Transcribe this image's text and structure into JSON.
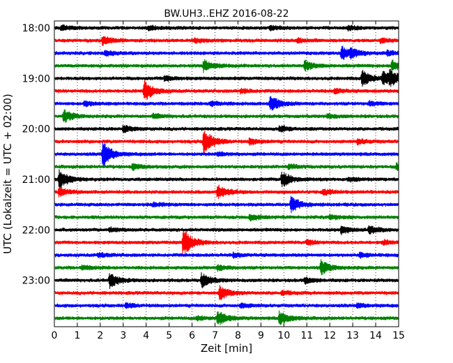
{
  "chart_data": {
    "type": "line",
    "title": "BW.UH3..EHZ 2016-08-22",
    "xlabel": "Zeit  [min]",
    "ylabel": "UTC (Lokalzeit = UTC + 02:00)",
    "xlim": [
      0,
      15
    ],
    "x_ticks": [
      "0",
      "1",
      "2",
      "3",
      "4",
      "5",
      "6",
      "7",
      "8",
      "9",
      "10",
      "11",
      "12",
      "13",
      "14",
      "15"
    ],
    "y_tick_labels": [
      "18:00",
      "19:00",
      "20:00",
      "21:00",
      "22:00",
      "23:00"
    ],
    "grid": "vertical dotted",
    "trace_interval_minutes": 15,
    "trace_colors": [
      "#000000",
      "#ff0000",
      "#0000ff",
      "#008000"
    ],
    "traces": [
      {
        "start": "18:00",
        "events": [
          [
            0.3,
            0.5
          ],
          [
            4.1,
            0.45
          ],
          [
            9.4,
            0.4
          ],
          [
            12.8,
            0.4
          ]
        ]
      },
      {
        "start": "18:15",
        "events": [
          [
            2.1,
            0.9
          ],
          [
            6.1,
            0.4
          ],
          [
            10.6,
            0.4
          ],
          [
            14.2,
            0.4
          ]
        ]
      },
      {
        "start": "18:30",
        "events": [
          [
            2.2,
            0.5
          ],
          [
            12.5,
            1.3
          ],
          [
            12.9,
            0.6
          ],
          [
            14.5,
            0.4
          ]
        ]
      },
      {
        "start": "18:45",
        "events": [
          [
            6.5,
            1.1
          ],
          [
            10.9,
            0.9
          ],
          [
            14.7,
            1.1
          ]
        ]
      },
      {
        "start": "19:00",
        "events": [
          [
            4.8,
            0.5
          ],
          [
            13.4,
            1.5
          ],
          [
            14.3,
            1.3
          ],
          [
            14.6,
            1.2
          ]
        ]
      },
      {
        "start": "19:15",
        "events": [
          [
            3.9,
            2.0
          ],
          [
            8.1,
            0.4
          ],
          [
            12.2,
            0.5
          ]
        ]
      },
      {
        "start": "19:30",
        "events": [
          [
            1.3,
            0.5
          ],
          [
            6.8,
            0.5
          ],
          [
            9.4,
            1.6
          ],
          [
            13.7,
            0.4
          ]
        ]
      },
      {
        "start": "19:45",
        "events": [
          [
            0.4,
            1.2
          ],
          [
            4.3,
            0.4
          ],
          [
            11.9,
            0.4
          ]
        ]
      },
      {
        "start": "20:00",
        "events": [
          [
            3.0,
            0.6
          ],
          [
            9.8,
            0.6
          ]
        ]
      },
      {
        "start": "20:15",
        "events": [
          [
            6.5,
            2.4
          ],
          [
            8.5,
            0.6
          ],
          [
            13.2,
            0.5
          ]
        ]
      },
      {
        "start": "20:30",
        "events": [
          [
            2.1,
            2.4
          ],
          [
            7.1,
            0.4
          ]
        ]
      },
      {
        "start": "20:45",
        "events": [
          [
            3.4,
            0.5
          ],
          [
            10.2,
            0.4
          ],
          [
            14.9,
            0.6
          ]
        ]
      },
      {
        "start": "21:00",
        "events": [
          [
            0.2,
            1.8
          ],
          [
            9.9,
            1.5
          ],
          [
            12.8,
            0.4
          ]
        ]
      },
      {
        "start": "21:15",
        "events": [
          [
            0.2,
            0.8
          ],
          [
            7.1,
            1.3
          ],
          [
            11.7,
            0.5
          ]
        ]
      },
      {
        "start": "21:30",
        "events": [
          [
            4.3,
            0.4
          ],
          [
            10.3,
            1.5
          ]
        ]
      },
      {
        "start": "21:45",
        "events": [
          [
            8.5,
            0.6
          ],
          [
            12.0,
            0.4
          ]
        ]
      },
      {
        "start": "22:00",
        "events": [
          [
            2.4,
            0.4
          ],
          [
            12.5,
            0.8
          ],
          [
            13.7,
            0.8
          ]
        ]
      },
      {
        "start": "22:15",
        "events": [
          [
            5.6,
            2.6
          ],
          [
            11.0,
            0.4
          ],
          [
            14.3,
            0.4
          ]
        ]
      },
      {
        "start": "22:30",
        "events": [
          [
            1.9,
            0.4
          ],
          [
            7.8,
            0.4
          ],
          [
            13.3,
            0.4
          ]
        ]
      },
      {
        "start": "22:45",
        "events": [
          [
            1.2,
            0.4
          ],
          [
            7.1,
            0.5
          ],
          [
            11.6,
            1.4
          ]
        ]
      },
      {
        "start": "23:00",
        "events": [
          [
            2.4,
            1.4
          ],
          [
            6.4,
            1.4
          ],
          [
            10.9,
            0.6
          ]
        ]
      },
      {
        "start": "23:15",
        "events": [
          [
            7.2,
            1.3
          ],
          [
            9.9,
            0.4
          ]
        ]
      },
      {
        "start": "23:30",
        "events": [
          [
            3.1,
            0.4
          ],
          [
            8.1,
            0.4
          ],
          [
            13.2,
            0.4
          ]
        ]
      },
      {
        "start": "23:45",
        "events": [
          [
            6.2,
            0.4
          ],
          [
            7.1,
            1.4
          ],
          [
            9.8,
            1.3
          ]
        ]
      }
    ]
  }
}
